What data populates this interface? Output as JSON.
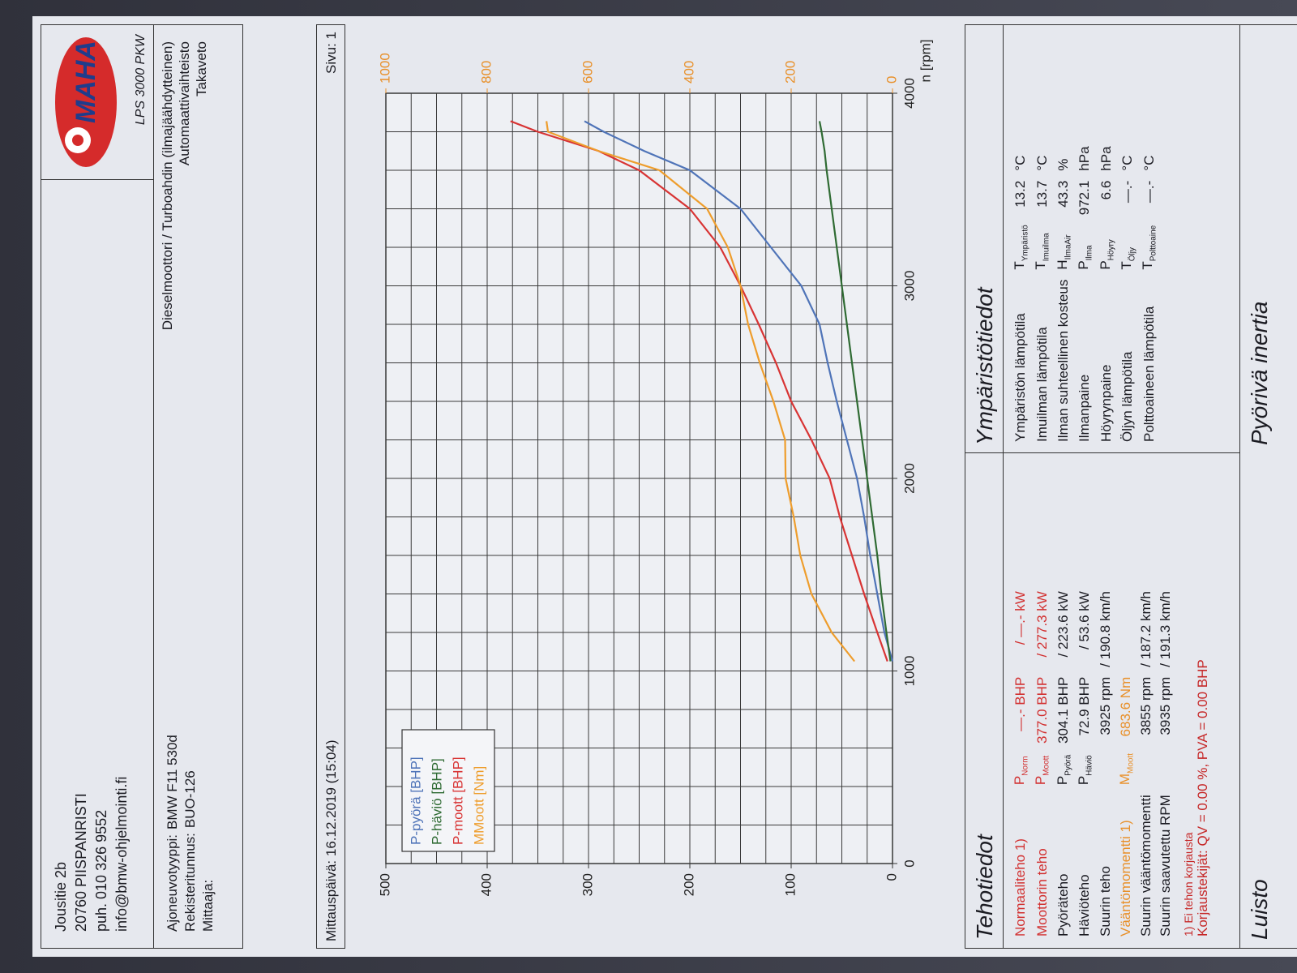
{
  "header": {
    "address": [
      "Jousitie 2b",
      "20760 PIISPANRISTI",
      "puh. 010 326 9552",
      "info@bmw-ohjelmointi.fi"
    ],
    "logo": "MAHA",
    "model": "LPS 3000 PKW"
  },
  "vehicle": {
    "fields": [
      {
        "label": "Ajoneuvotyyppi:",
        "value": "BMW F11 530d"
      },
      {
        "label": "Rekisteritunnus:",
        "value": "BUO-126"
      },
      {
        "label": "Mittaaja:"
      }
    ],
    "details": [
      "Dieselmoottori / Turboahdin (ilmajäähdytteinen)",
      "Automaattivaihteisto",
      "Takaveto"
    ]
  },
  "measurement": {
    "date": "Mittauspäivä: 16.12.2019 (15:04)",
    "page": "Sivu: 1"
  },
  "chart_data": {
    "type": "line",
    "xlabel": "n [rpm]",
    "x": [
      1050,
      1200,
      1400,
      1600,
      1800,
      2000,
      2200,
      2400,
      2600,
      2800,
      3000,
      3200,
      3400,
      3600,
      3700,
      3800,
      3855
    ],
    "series": [
      {
        "name": "P-pyörä [BHP]",
        "color": "#4f74b8",
        "values": [
          0,
          8,
          15,
          22,
          28,
          35,
          45,
          55,
          64,
          72,
          90,
          120,
          150,
          200,
          245,
          285,
          304
        ]
      },
      {
        "name": "P-häviö [BHP]",
        "color": "#2f6b33",
        "values": [
          2,
          6,
          11,
          15,
          20,
          25,
          30,
          35,
          40,
          45,
          50,
          55,
          60,
          65,
          67,
          70,
          72
        ]
      },
      {
        "name": "P-moott [BHP]",
        "color": "#d83434",
        "values": [
          5,
          15,
          28,
          40,
          52,
          62,
          80,
          100,
          115,
          132,
          150,
          170,
          200,
          250,
          290,
          350,
          377
        ]
      },
      {
        "name": "MMoott [Nm]",
        "color": "#ee9d2c",
        "axis": "y2",
        "values": [
          75,
          120,
          160,
          182,
          195,
          211,
          212,
          235,
          262,
          285,
          300,
          325,
          366,
          460,
          580,
          680,
          683
        ]
      }
    ],
    "xlim": [
      0,
      4000
    ],
    "xticks": [
      0,
      1000,
      2000,
      3000,
      4000
    ],
    "ylim": [
      0,
      500
    ],
    "yticks": [
      0,
      100,
      200,
      300,
      400,
      500
    ],
    "y2lim": [
      0,
      1000
    ],
    "y2ticks": [
      0,
      200,
      400,
      600,
      800,
      1000
    ],
    "grid": true,
    "minor_grid": {
      "x": 200,
      "y": 25
    },
    "legend": "upper left"
  },
  "power": {
    "title": "Tehotiedot",
    "rows": [
      {
        "label": "Normaaliteho 1)",
        "symbol": {
          "main": "P",
          "sub": "Norm"
        },
        "primary": "—.- BHP",
        "secondary": "/ —.- kW",
        "color": "#d23030"
      },
      {
        "label": "Moottorin teho",
        "symbol": {
          "main": "P",
          "sub": "Moott"
        },
        "primary": "377.0 BHP",
        "secondary": "/ 277.3 kW",
        "color": "#d23030"
      },
      {
        "label": "Pyöräteho",
        "symbol": {
          "main": "P",
          "sub": "Pyörä"
        },
        "primary": "304.1 BHP",
        "secondary": "/ 223.6 kW"
      },
      {
        "label": "Häviöteho",
        "symbol": {
          "main": "P",
          "sub": "Häviö"
        },
        "primary": "72.9 BHP",
        "secondary": "/ 53.6 kW"
      },
      {
        "label": "Suurin teho",
        "primary": "3925 rpm",
        "secondary": "/ 190.8 km/h"
      },
      {
        "label": "Vääntömomentti 1)",
        "symbol": {
          "main": "M",
          "sub": "Moott"
        },
        "primary": "683.6 Nm",
        "color": "#e8902a"
      },
      {
        "label": "Suurin vääntömomentti",
        "primary": "3855 rpm",
        "secondary": "/ 187.2 km/h"
      },
      {
        "label": "Suurin saavutettu RPM",
        "primary": "3935 rpm",
        "secondary": "/ 191.3 km/h"
      }
    ],
    "footnote": "1) Ei tehon korjausta",
    "correction": "Korjaustekijät: QV = 0.00 %, PVA = 0.00 BHP"
  },
  "environment": {
    "title": "Ympäristötiedot",
    "rows": [
      {
        "label": "Ympäristön lämpötila",
        "symbol": {
          "main": "T",
          "sub": "Ympäristö"
        },
        "value": "13.2",
        "unit": "°C"
      },
      {
        "label": "Imuilman lämpötila",
        "symbol": {
          "main": "T",
          "sub": "Imuilma"
        },
        "value": "13.7",
        "unit": "°C"
      },
      {
        "label": "Ilman suhteellinen kosteus",
        "symbol": {
          "main": "H",
          "sub": "IlmaAir"
        },
        "value": "43.3",
        "unit": "%"
      },
      {
        "label": "Ilmanpaine",
        "symbol": {
          "main": "P",
          "sub": "Ilma"
        },
        "value": "972.1",
        "unit": "hPa"
      },
      {
        "label": "Höyrynpaine",
        "symbol": {
          "main": "P",
          "sub": "Höyry"
        },
        "value": "6.6",
        "unit": "hPa"
      },
      {
        "label": "Öljyn lämpötila",
        "symbol": {
          "main": "T",
          "sub": "Öljy"
        },
        "value": "—.-",
        "unit": "°C"
      },
      {
        "label": "Polttoaineen lämpötila",
        "symbol": {
          "main": "T",
          "sub": "Polttoaine"
        },
        "value": "—.-",
        "unit": "°C"
      }
    ]
  },
  "footer": {
    "left": "Luisto",
    "right": "Pyörivä inertia"
  }
}
